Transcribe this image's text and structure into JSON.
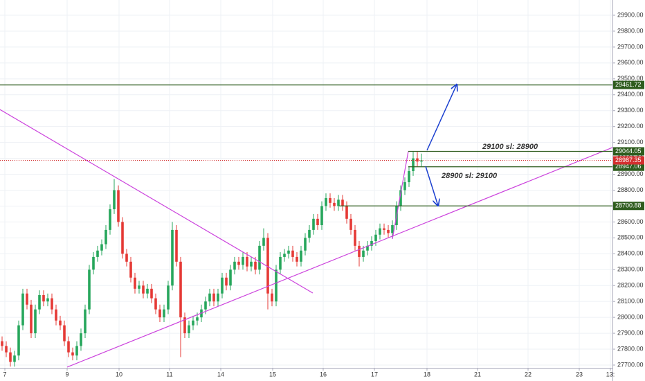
{
  "chart_data": {
    "type": "candlestick",
    "up_color": "#26a65b",
    "down_color": "#e53935",
    "grid": true,
    "xlim": [
      -0.5,
      147
    ],
    "xticks": [
      {
        "value": 0.67,
        "label": "7"
      },
      {
        "value": 15.67,
        "label": "9"
      },
      {
        "value": 28.17,
        "label": "10"
      },
      {
        "value": 40.33,
        "label": "11"
      },
      {
        "value": 52.67,
        "label": "14"
      },
      {
        "value": 65.17,
        "label": "15"
      },
      {
        "value": 77.33,
        "label": "16"
      },
      {
        "value": 89.67,
        "label": "17"
      },
      {
        "value": 102.33,
        "label": "18"
      },
      {
        "value": 114.5,
        "label": "21"
      },
      {
        "value": 126.67,
        "label": "22"
      },
      {
        "value": 139,
        "label": "23"
      },
      {
        "value": 146.5,
        "label": "13:"
      }
    ],
    "ylim": [
      27700,
      29900
    ],
    "yticks": [
      {
        "value": 27700,
        "label": "27700.00"
      },
      {
        "value": 27800,
        "label": "27800.00"
      },
      {
        "value": 27900,
        "label": "27900.00"
      },
      {
        "value": 28000,
        "label": "28000.00"
      },
      {
        "value": 28100,
        "label": "28100.00"
      },
      {
        "value": 28200,
        "label": "28200.00"
      },
      {
        "value": 28300,
        "label": "28300.00"
      },
      {
        "value": 28400,
        "label": "28400.00"
      },
      {
        "value": 28500,
        "label": "28500.00"
      },
      {
        "value": 28600,
        "label": "28600.00"
      },
      {
        "value": 28700,
        "label": "28700.00"
      },
      {
        "value": 28800,
        "label": "28800.00"
      },
      {
        "value": 28900,
        "label": "28900.00"
      },
      {
        "value": 29000,
        "label": "29000.00"
      },
      {
        "value": 29100,
        "label": "29100.00"
      },
      {
        "value": 29200,
        "label": "29200.00"
      },
      {
        "value": 29300,
        "label": "29300.00"
      },
      {
        "value": 29400,
        "label": "29400.00"
      },
      {
        "value": 29500,
        "label": "29500.00"
      },
      {
        "value": 29600,
        "label": "29600.00"
      },
      {
        "value": 29700,
        "label": "29700.00"
      },
      {
        "value": 29800,
        "label": "29800.00"
      },
      {
        "value": 29900,
        "label": "29900.00"
      }
    ],
    "candles": {
      "x": [
        0,
        1,
        2,
        3,
        4,
        5,
        6,
        7,
        8,
        9,
        10,
        11,
        12,
        13,
        14,
        15,
        16,
        17,
        18,
        19,
        20,
        21,
        22,
        23,
        24,
        25,
        26,
        27,
        28,
        29,
        30,
        31,
        32,
        33,
        34,
        35,
        36,
        37,
        38,
        39,
        40,
        41,
        42,
        43,
        44,
        45,
        46,
        47,
        48,
        49,
        50,
        51,
        52,
        53,
        54,
        55,
        56,
        57,
        58,
        59,
        60,
        61,
        62,
        63,
        64,
        65,
        66,
        67,
        68,
        69,
        70,
        71,
        72,
        73,
        74,
        75,
        76,
        77,
        78,
        79,
        80,
        81,
        82,
        83,
        84,
        85,
        86,
        87,
        88,
        89,
        90,
        91,
        92,
        93,
        94,
        95,
        96,
        97,
        98,
        99,
        100,
        101
      ],
      "open": [
        27850,
        27820,
        27780,
        27720,
        27760,
        27950,
        28150,
        28080,
        27900,
        28050,
        28140,
        28100,
        28120,
        28050,
        27980,
        27950,
        27850,
        27780,
        27760,
        27820,
        27900,
        28050,
        28300,
        28380,
        28420,
        28460,
        28550,
        28680,
        28800,
        28600,
        28400,
        28350,
        28250,
        28180,
        28200,
        28150,
        28180,
        28120,
        28050,
        28000,
        28050,
        28200,
        28550,
        28350,
        28000,
        27900,
        27950,
        27980,
        28000,
        28050,
        28100,
        28150,
        28100,
        28150,
        28250,
        28200,
        28300,
        28350,
        28330,
        28380,
        28320,
        28350,
        28300,
        28450,
        28500,
        28150,
        28100,
        28300,
        28380,
        28400,
        28420,
        28380,
        28350,
        28420,
        28500,
        28550,
        28620,
        28580,
        28700,
        28750,
        28720,
        28700,
        28740,
        28700,
        28620,
        28550,
        28450,
        28380,
        28420,
        28450,
        28480,
        28520,
        28560,
        28550,
        28530,
        28580,
        28700,
        28800,
        28850,
        28920,
        29000,
        28980
      ],
      "high": [
        27880,
        27850,
        27810,
        27790,
        27980,
        28180,
        28180,
        28110,
        28080,
        28170,
        28170,
        28150,
        28150,
        28080,
        28010,
        27980,
        27880,
        27810,
        27850,
        27930,
        28080,
        28330,
        28410,
        28450,
        28490,
        28580,
        28710,
        28870,
        28830,
        28630,
        28430,
        28380,
        28280,
        28230,
        28230,
        28210,
        28210,
        28150,
        28080,
        28080,
        28230,
        28600,
        28580,
        28380,
        28030,
        27980,
        28010,
        28030,
        28080,
        28130,
        28180,
        28180,
        28180,
        28280,
        28280,
        28330,
        28380,
        28380,
        28410,
        28410,
        28380,
        28380,
        28480,
        28560,
        28530,
        28180,
        28330,
        28410,
        28430,
        28450,
        28450,
        28410,
        28450,
        28530,
        28580,
        28650,
        28650,
        28730,
        28780,
        28780,
        28750,
        28770,
        28770,
        28730,
        28650,
        28580,
        28480,
        28450,
        28480,
        28510,
        28550,
        28590,
        28590,
        28580,
        28610,
        28730,
        28830,
        28880,
        28950,
        29040,
        29040,
        29030
      ],
      "low": [
        27790,
        27750,
        27690,
        27690,
        27730,
        27920,
        28050,
        27870,
        27870,
        28020,
        28070,
        28070,
        28020,
        27950,
        27920,
        27820,
        27750,
        27730,
        27730,
        27790,
        27870,
        28020,
        28270,
        28350,
        28390,
        28430,
        28520,
        28650,
        28570,
        28370,
        28320,
        28220,
        28150,
        28150,
        28120,
        28120,
        28090,
        28020,
        27970,
        27970,
        28020,
        28170,
        28320,
        27750,
        27870,
        27870,
        27920,
        27950,
        27970,
        28020,
        28070,
        28070,
        28070,
        28120,
        28170,
        28170,
        28270,
        28300,
        28300,
        28290,
        28290,
        28270,
        28270,
        28420,
        28050,
        28070,
        28070,
        28270,
        28350,
        28370,
        28350,
        28320,
        28320,
        28390,
        28470,
        28520,
        28550,
        28550,
        28670,
        28690,
        28670,
        28670,
        28670,
        28590,
        28520,
        28420,
        28320,
        28350,
        28390,
        28420,
        28450,
        28490,
        28520,
        28500,
        28500,
        28550,
        28670,
        28770,
        28820,
        28890,
        28950,
        28950
      ],
      "close": [
        27820,
        27780,
        27720,
        27760,
        27950,
        28150,
        28080,
        27900,
        28050,
        28140,
        28100,
        28120,
        28050,
        27980,
        27950,
        27850,
        27780,
        27760,
        27820,
        27900,
        28050,
        28300,
        28380,
        28420,
        28460,
        28550,
        28680,
        28800,
        28600,
        28400,
        28350,
        28250,
        28180,
        28200,
        28150,
        28180,
        28120,
        28050,
        28000,
        28050,
        28200,
        28550,
        28350,
        28000,
        27900,
        27950,
        27980,
        28000,
        28050,
        28100,
        28150,
        28100,
        28150,
        28250,
        28200,
        28300,
        28350,
        28330,
        28380,
        28320,
        28350,
        28300,
        28450,
        28500,
        28150,
        28100,
        28300,
        28380,
        28400,
        28420,
        28380,
        28350,
        28420,
        28500,
        28550,
        28620,
        28580,
        28700,
        28750,
        28720,
        28700,
        28740,
        28700,
        28620,
        28550,
        28450,
        28380,
        28420,
        28450,
        28480,
        28520,
        28560,
        28550,
        28530,
        28580,
        28700,
        28800,
        28850,
        28920,
        29000,
        28980,
        28987.35
      ]
    },
    "trendlines": [
      {
        "color": "#cc44dd",
        "x": [
          -0.5,
          74.83
        ],
        "y": [
          29307,
          28153
        ]
      },
      {
        "color": "#cc44dd",
        "x": [
          15.67,
          147
        ],
        "y": [
          27687,
          29068
        ]
      },
      {
        "color": "#cc44dd",
        "x": [
          94,
          97.83
        ],
        "y": [
          28493,
          29044
        ]
      }
    ],
    "levels": [
      {
        "value": 29461.72,
        "start": -0.5,
        "color": "#2e5c1e"
      },
      {
        "value": 29044.05,
        "start": 97.83,
        "color": "#2e5c1e"
      },
      {
        "value": 28947.06,
        "start": 97.83,
        "color": "#2e5c1e"
      },
      {
        "value": 28700.88,
        "start": 81.2,
        "color": "#2e5c1e"
      }
    ],
    "last_price": {
      "value": 28987.35,
      "color": "#d32f2f"
    },
    "annotations": [
      {
        "text": "29100 sl: 28900",
        "color": "#1a9e9e"
      },
      {
        "text": "28900 sl: 29100",
        "color": "#e53935"
      }
    ]
  }
}
